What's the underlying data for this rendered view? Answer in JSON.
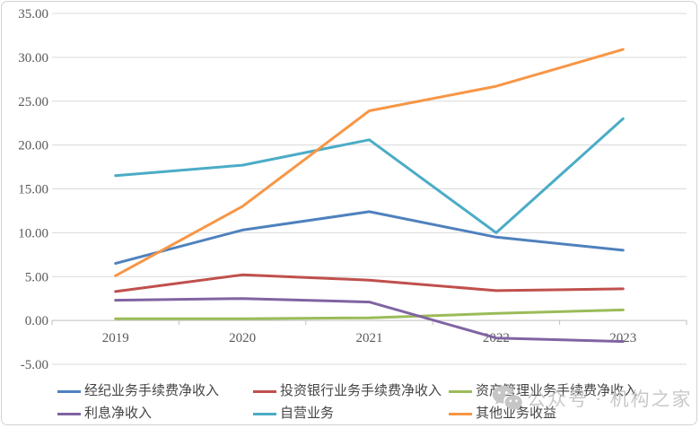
{
  "watermark": {
    "text": "公众号 · 机构之家",
    "icon": "wechat-icon",
    "color": "#c9c9c9"
  },
  "chart_data": {
    "type": "line",
    "categories": [
      "2019",
      "2020",
      "2021",
      "2022",
      "2023"
    ],
    "series": [
      {
        "name": "经纪业务手续费净收入",
        "color": "#4F81BD",
        "values": [
          6.5,
          10.3,
          12.4,
          9.5,
          8.0
        ]
      },
      {
        "name": "投资银行业务手续费净收入",
        "color": "#C0504D",
        "values": [
          3.3,
          5.2,
          4.6,
          3.4,
          3.6
        ]
      },
      {
        "name": "资产管理业务手续费净收入",
        "color": "#9BBB59",
        "values": [
          0.2,
          0.2,
          0.3,
          0.8,
          1.2
        ]
      },
      {
        "name": "利息净收入",
        "color": "#8064A2",
        "values": [
          2.3,
          2.5,
          2.1,
          -2.0,
          -2.4
        ]
      },
      {
        "name": "自营业务",
        "color": "#4BACC6",
        "values": [
          16.5,
          17.7,
          20.6,
          10.0,
          23.0
        ]
      },
      {
        "name": "其他业务收益",
        "color": "#F79646",
        "values": [
          5.1,
          13.0,
          23.9,
          26.7,
          30.9
        ]
      }
    ],
    "title": "",
    "xlabel": "",
    "ylabel": "",
    "ylim": [
      -5,
      35
    ],
    "ytick_step": 5,
    "ytick_labels": [
      "35.00",
      "30.00",
      "25.00",
      "20.00",
      "15.00",
      "10.00",
      "5.00",
      "0.00",
      "-5.00"
    ],
    "grid": true,
    "legend_position": "bottom",
    "gridline_color": "#D9D9D9",
    "axis_color": "#BFBFBF"
  }
}
